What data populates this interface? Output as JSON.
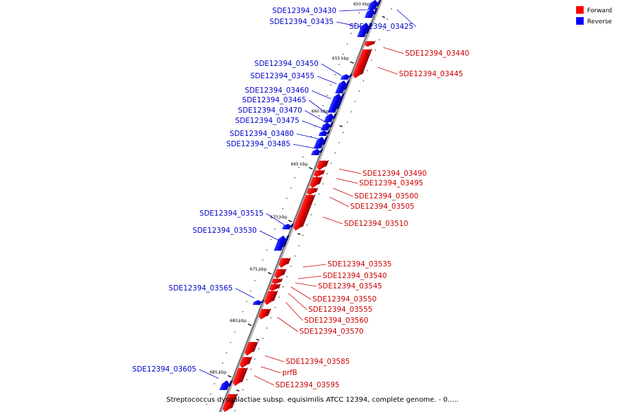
{
  "legend": [
    {
      "label": "Forward",
      "color": "#ff0000"
    },
    {
      "label": "Reverse",
      "color": "#0000ff"
    }
  ],
  "ticks": [
    {
      "label": "650 kbp"
    },
    {
      "label": "655 kbp"
    },
    {
      "label": "660 kbp"
    },
    {
      "label": "665 kbp"
    },
    {
      "label": "670 kbp"
    },
    {
      "label": "675 kbp"
    },
    {
      "label": "680 kbp"
    },
    {
      "label": "685 kbp"
    }
  ],
  "genes": [
    {
      "name": "SDE12394_03430",
      "strand": "reverse"
    },
    {
      "name": "SDE12394_03435",
      "strand": "reverse"
    },
    {
      "name": "SDE12394_03425",
      "strand": "reverse"
    },
    {
      "name": "SDE12394_03440",
      "strand": "forward"
    },
    {
      "name": "SDE12394_03445",
      "strand": "forward"
    },
    {
      "name": "SDE12394_03450",
      "strand": "reverse"
    },
    {
      "name": "SDE12394_03455",
      "strand": "reverse"
    },
    {
      "name": "SDE12394_03460",
      "strand": "reverse"
    },
    {
      "name": "SDE12394_03465",
      "strand": "reverse"
    },
    {
      "name": "SDE12394_03470",
      "strand": "reverse"
    },
    {
      "name": "SDE12394_03475",
      "strand": "reverse"
    },
    {
      "name": "SDE12394_03480",
      "strand": "reverse"
    },
    {
      "name": "SDE12394_03485",
      "strand": "reverse"
    },
    {
      "name": "SDE12394_03490",
      "strand": "forward"
    },
    {
      "name": "SDE12394_03495",
      "strand": "forward"
    },
    {
      "name": "SDE12394_03500",
      "strand": "forward"
    },
    {
      "name": "SDE12394_03505",
      "strand": "forward"
    },
    {
      "name": "SDE12394_03510",
      "strand": "forward"
    },
    {
      "name": "SDE12394_03515",
      "strand": "reverse"
    },
    {
      "name": "SDE12394_03530",
      "strand": "reverse"
    },
    {
      "name": "SDE12394_03535",
      "strand": "forward"
    },
    {
      "name": "SDE12394_03540",
      "strand": "forward"
    },
    {
      "name": "SDE12394_03545",
      "strand": "forward"
    },
    {
      "name": "SDE12394_03550",
      "strand": "forward"
    },
    {
      "name": "SDE12394_03555",
      "strand": "forward"
    },
    {
      "name": "SDE12394_03560",
      "strand": "forward"
    },
    {
      "name": "SDE12394_03570",
      "strand": "forward"
    },
    {
      "name": "SDE12394_03565",
      "strand": "reverse"
    },
    {
      "name": "SDE12394_03585",
      "strand": "forward"
    },
    {
      "name": "prfB",
      "strand": "forward"
    },
    {
      "name": "SDE12394_03595",
      "strand": "forward"
    },
    {
      "name": "SDE12394_03605",
      "strand": "reverse"
    }
  ],
  "caption": "Streptococcus dysgalactiae subsp. equisimilis ATCC 12394, complete genome. - 0....."
}
